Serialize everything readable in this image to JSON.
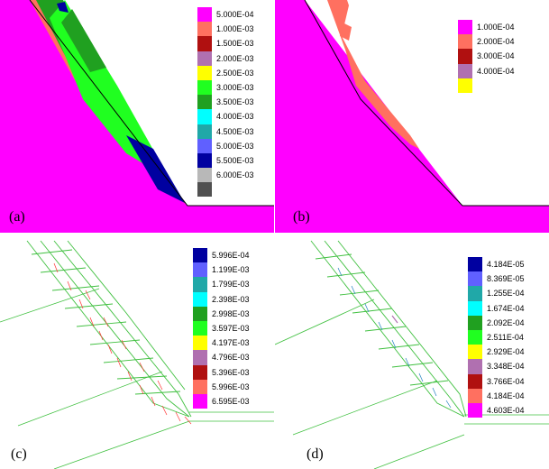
{
  "panels": [
    {
      "id": "a",
      "label": "(a)",
      "legend": [
        {
          "text": "5.000E-04",
          "color": "#ff00ff"
        },
        {
          "text": "1.000E-03",
          "color": "#ff7060"
        },
        {
          "text": "1.500E-03",
          "color": "#b01010"
        },
        {
          "text": "2.000E-03",
          "color": "#b070b0"
        },
        {
          "text": "2.500E-03",
          "color": "#ffff00"
        },
        {
          "text": "3.000E-03",
          "color": "#20ff20"
        },
        {
          "text": "3.500E-03",
          "color": "#20a020"
        },
        {
          "text": "4.000E-03",
          "color": "#00ffff"
        },
        {
          "text": "4.500E-03",
          "color": "#20a8a8"
        },
        {
          "text": "5.000E-03",
          "color": "#6060ff"
        },
        {
          "text": "5.500E-03",
          "color": "#0000a0"
        },
        {
          "text": "6.000E-03",
          "color": "#b8b8b8"
        },
        {
          "text": "",
          "color": "#505050"
        }
      ]
    },
    {
      "id": "b",
      "label": "(b)",
      "legend": [
        {
          "text": "1.000E-04",
          "color": "#ff00ff"
        },
        {
          "text": "2.000E-04",
          "color": "#ff7060"
        },
        {
          "text": "3.000E-04",
          "color": "#b01010"
        },
        {
          "text": "4.000E-04",
          "color": "#b070b0"
        },
        {
          "text": "",
          "color": "#ffff00"
        }
      ]
    },
    {
      "id": "c",
      "label": "(c)",
      "legend": [
        {
          "text": "5.996E-04",
          "color": "#0000a0"
        },
        {
          "text": "1.199E-03",
          "color": "#6060ff"
        },
        {
          "text": "1.799E-03",
          "color": "#20a8a8"
        },
        {
          "text": "2.398E-03",
          "color": "#00ffff"
        },
        {
          "text": "2.998E-03",
          "color": "#20a020"
        },
        {
          "text": "3.597E-03",
          "color": "#20ff20"
        },
        {
          "text": "4.197E-03",
          "color": "#ffff00"
        },
        {
          "text": "4.796E-03",
          "color": "#b070b0"
        },
        {
          "text": "5.396E-03",
          "color": "#b01010"
        },
        {
          "text": "5.996E-03",
          "color": "#ff7060"
        },
        {
          "text": "6.595E-03",
          "color": "#ff00ff"
        }
      ]
    },
    {
      "id": "d",
      "label": "(d)",
      "legend": [
        {
          "text": "4.184E-05",
          "color": "#0000a0"
        },
        {
          "text": "8.369E-05",
          "color": "#6060ff"
        },
        {
          "text": "1.255E-04",
          "color": "#20a8a8"
        },
        {
          "text": "1.674E-04",
          "color": "#00ffff"
        },
        {
          "text": "2.092E-04",
          "color": "#20a020"
        },
        {
          "text": "2.511E-04",
          "color": "#20ff20"
        },
        {
          "text": "2.929E-04",
          "color": "#ffff00"
        },
        {
          "text": "3.348E-04",
          "color": "#b070b0"
        },
        {
          "text": "3.766E-04",
          "color": "#b01010"
        },
        {
          "text": "4.184E-04",
          "color": "#ff7060"
        },
        {
          "text": "4.603E-04",
          "color": "#ff00ff"
        }
      ]
    }
  ]
}
